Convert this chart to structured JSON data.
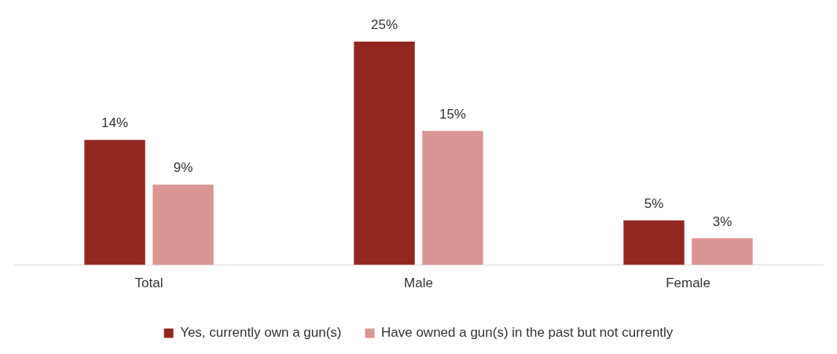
{
  "chart_data": {
    "type": "bar",
    "categories": [
      "Total",
      "Male",
      "Female"
    ],
    "series": [
      {
        "name": "Yes, currently own a gun(s)",
        "color": "#922722",
        "values": [
          14,
          25,
          5
        ],
        "value_labels": [
          "14%",
          "25%",
          "5%"
        ]
      },
      {
        "name": "Have owned a gun(s) in the past but not currently",
        "color": "#d99694",
        "values": [
          9,
          15,
          3
        ],
        "value_labels": [
          "9%",
          "15%",
          "3%"
        ]
      }
    ],
    "legend": "bottom",
    "grid": false
  }
}
